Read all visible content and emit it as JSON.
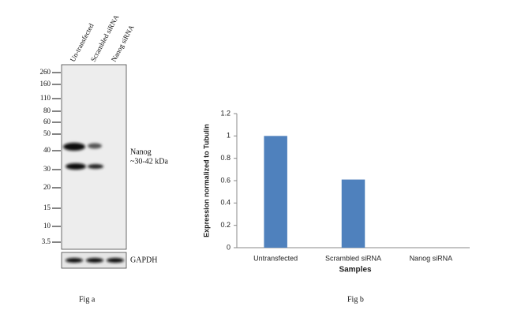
{
  "blot": {
    "lanes": [
      "Un-transfected",
      "Scrambled siRNA",
      "Nanog siRNA"
    ],
    "markers": [
      260,
      160,
      110,
      80,
      60,
      50,
      40,
      30,
      20,
      15,
      10,
      3.5
    ],
    "band_label": "Nanog",
    "band_size": "~30-42 kDa",
    "loading_control": "GAPDH",
    "caption": "Fig a"
  },
  "chart_data": {
    "type": "bar",
    "caption": "Fig b",
    "categories": [
      "Untransfected",
      "Scrambled siRNA",
      "Nanog siRNA"
    ],
    "values": [
      1,
      0.61,
      0
    ],
    "color": "#4f81bd",
    "xlabel": "Samples",
    "ylabel": "Expression  normalized to Tubulin",
    "ylim": [
      0,
      1.2
    ],
    "yticks": [
      0,
      0.2,
      0.4,
      0.6,
      0.8,
      1,
      1.2
    ]
  }
}
